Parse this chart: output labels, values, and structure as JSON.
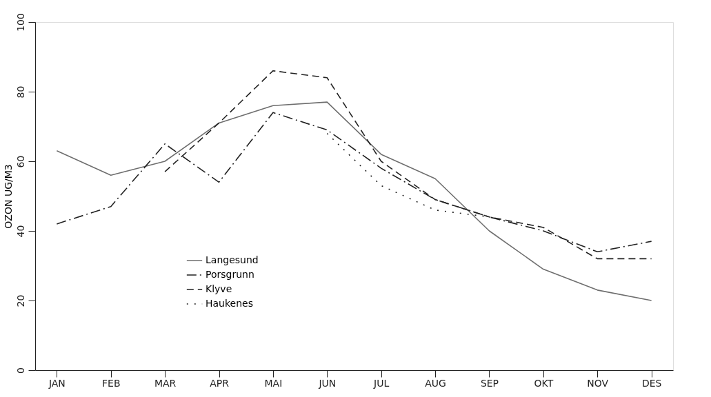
{
  "chart_data": {
    "type": "line",
    "ylabel": "OZON UG/M3",
    "categories": [
      "JAN",
      "FEB",
      "MAR",
      "APR",
      "MAI",
      "JUN",
      "JUL",
      "AUG",
      "SEP",
      "OKT",
      "NOV",
      "DES"
    ],
    "series": [
      {
        "name": "Langesund",
        "color": "#6e6e6e",
        "line_style": "solid",
        "values": [
          63,
          56,
          60,
          71,
          76,
          77,
          62,
          55,
          40,
          29,
          23,
          20
        ]
      },
      {
        "name": "Porsgrunn",
        "color": "#222222",
        "line_style": "dashdot",
        "values": [
          42,
          47,
          65,
          54,
          74,
          69,
          58,
          49,
          44,
          40,
          34,
          37
        ]
      },
      {
        "name": "Klyve",
        "color": "#222222",
        "line_style": "dashed",
        "values": [
          null,
          null,
          57,
          71,
          86,
          84,
          60,
          49,
          44,
          41,
          32,
          32
        ]
      },
      {
        "name": "Haukenes",
        "color": "#222222",
        "line_style": "dotted",
        "values": [
          null,
          null,
          null,
          null,
          null,
          68,
          53,
          46,
          44,
          null,
          null,
          null
        ]
      }
    ],
    "ylim": [
      0,
      100
    ],
    "yticks": [
      0,
      20,
      40,
      60,
      80,
      100
    ],
    "grid": false,
    "legend": "bottom left",
    "marker": "none"
  }
}
